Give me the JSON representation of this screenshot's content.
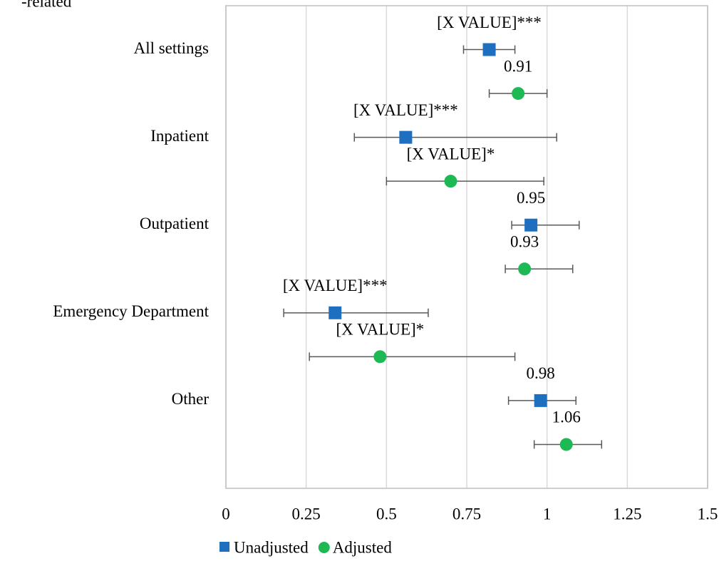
{
  "chart_data": {
    "type": "forest",
    "title": "-related",
    "categories": [
      "All settings",
      "Inpatient",
      "Outpatient",
      "Emergency Department",
      "Other"
    ],
    "series": [
      {
        "name": "Unadjusted",
        "color": "#1f6fc0",
        "marker": "square",
        "values": [
          0.82,
          0.56,
          0.95,
          0.34,
          0.98
        ],
        "lower": [
          0.74,
          0.4,
          0.89,
          0.18,
          0.88
        ],
        "upper": [
          0.9,
          1.03,
          1.1,
          0.63,
          1.09
        ],
        "value_labels": [
          "[X VALUE]***",
          "[X VALUE]***",
          "0.95",
          "[X VALUE]***",
          "0.98"
        ]
      },
      {
        "name": "Adjusted",
        "color": "#1db954",
        "marker": "circle",
        "values": [
          0.91,
          0.7,
          0.93,
          0.48,
          1.06
        ],
        "lower": [
          0.82,
          0.5,
          0.87,
          0.26,
          0.96
        ],
        "upper": [
          1.0,
          0.99,
          1.08,
          0.9,
          1.17
        ],
        "value_labels": [
          "0.91",
          "[X VALUE]*",
          "0.93",
          "[X VALUE]*",
          "1.06"
        ]
      }
    ],
    "xlim": [
      0,
      1.5
    ],
    "xticks": [
      0,
      0.25,
      0.5,
      0.75,
      1,
      1.25,
      1.5
    ],
    "grid": true
  }
}
